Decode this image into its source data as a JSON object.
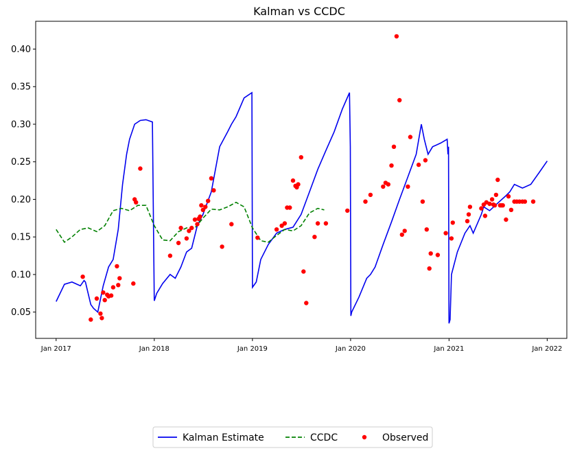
{
  "chart_data": {
    "type": "line",
    "title": "Kalman vs CCDC",
    "xlabel": "",
    "ylabel": "",
    "xlim": [
      "2016-10-17",
      "2022-03-15"
    ],
    "ylim": [
      0.015,
      0.437
    ],
    "x_ticks": [
      "Jan 2017",
      "Jan 2018",
      "Jan 2019",
      "Jan 2020",
      "Jan 2021",
      "Jan 2022"
    ],
    "y_ticks": [
      "0.05",
      "0.10",
      "0.15",
      "0.20",
      "0.25",
      "0.30",
      "0.35",
      "0.40"
    ],
    "legend": {
      "placement": "bottom-center",
      "entries": [
        "Kalman Estimate",
        "CCDC",
        "Observed"
      ]
    },
    "colors": {
      "kalman": "#0000ee",
      "ccdc": "#008000",
      "observed": "#ff0000"
    },
    "series": [
      {
        "name": "Kalman Estimate",
        "style": "solid",
        "x": [
          "2017-01-01",
          "2017-02-01",
          "2017-03-01",
          "2017-04-01",
          "2017-04-15",
          "2017-04-20",
          "2017-05-10",
          "2017-05-20",
          "2017-06-05",
          "2017-06-25",
          "2017-07-15",
          "2017-08-01",
          "2017-08-20",
          "2017-09-05",
          "2017-09-20",
          "2017-10-01",
          "2017-10-20",
          "2017-11-10",
          "2017-12-01",
          "2017-12-25",
          "2018-01-01",
          "2018-01-10",
          "2018-02-01",
          "2018-03-01",
          "2018-03-20",
          "2018-04-10",
          "2018-05-01",
          "2018-05-20",
          "2018-06-10",
          "2018-07-01",
          "2018-08-01",
          "2018-09-01",
          "2018-10-01",
          "2018-10-15",
          "2018-11-01",
          "2018-12-01",
          "2018-12-30",
          "2019-01-01",
          "2019-01-15",
          "2019-02-01",
          "2019-03-01",
          "2019-04-01",
          "2019-05-01",
          "2019-06-01",
          "2019-07-01",
          "2019-08-01",
          "2019-09-01",
          "2019-10-01",
          "2019-11-01",
          "2019-12-01",
          "2019-12-28",
          "2019-12-31",
          "2020-01-02",
          "2020-01-05",
          "2020-02-01",
          "2020-03-01",
          "2020-03-15",
          "2020-04-01",
          "2020-05-01",
          "2020-06-01",
          "2020-07-01",
          "2020-08-01",
          "2020-09-01",
          "2020-09-20",
          "2020-10-01",
          "2020-10-15",
          "2020-11-01",
          "2020-12-01",
          "2020-12-25",
          "2020-12-28",
          "2020-12-30",
          "2021-01-01",
          "2021-01-05",
          "2021-01-10",
          "2021-02-01",
          "2021-03-01",
          "2021-03-20",
          "2021-04-01",
          "2021-05-01",
          "2021-05-10",
          "2021-06-01",
          "2021-07-01",
          "2021-08-01",
          "2021-08-15",
          "2021-09-01",
          "2021-10-01",
          "2021-11-01",
          "2021-12-01",
          "2022-01-01"
        ],
        "y": [
          0.064,
          0.087,
          0.09,
          0.085,
          0.092,
          0.09,
          0.06,
          0.055,
          0.05,
          0.085,
          0.11,
          0.12,
          0.16,
          0.22,
          0.26,
          0.28,
          0.3,
          0.305,
          0.306,
          0.303,
          0.065,
          0.075,
          0.088,
          0.1,
          0.095,
          0.11,
          0.13,
          0.135,
          0.165,
          0.18,
          0.21,
          0.27,
          0.29,
          0.3,
          0.31,
          0.335,
          0.342,
          0.083,
          0.09,
          0.12,
          0.14,
          0.155,
          0.16,
          0.163,
          0.18,
          0.21,
          0.24,
          0.265,
          0.29,
          0.32,
          0.342,
          0.27,
          0.045,
          0.05,
          0.07,
          0.095,
          0.1,
          0.11,
          0.14,
          0.17,
          0.2,
          0.23,
          0.26,
          0.3,
          0.28,
          0.26,
          0.27,
          0.275,
          0.28,
          0.26,
          0.27,
          0.035,
          0.04,
          0.1,
          0.13,
          0.155,
          0.165,
          0.155,
          0.18,
          0.19,
          0.185,
          0.195,
          0.205,
          0.21,
          0.22,
          0.215,
          0.22,
          0.235,
          0.251
        ]
      },
      {
        "name": "CCDC",
        "style": "dashed",
        "x": [
          "2017-01-01",
          "2017-02-01",
          "2017-03-01",
          "2017-04-01",
          "2017-05-01",
          "2017-06-01",
          "2017-07-01",
          "2017-08-01",
          "2017-09-01",
          "2017-10-01",
          "2017-11-01",
          "2017-12-01",
          "2018-01-01",
          "2018-02-01",
          "2018-03-01",
          "2018-04-01",
          "2018-05-01",
          "2018-06-01",
          "2018-07-01",
          "2018-08-01",
          "2018-09-01",
          "2018-10-01",
          "2018-11-01",
          "2018-12-01",
          "2019-01-01",
          "2019-02-01",
          "2019-03-01",
          "2019-04-01",
          "2019-05-01",
          "2019-06-01",
          "2019-07-01",
          "2019-08-01",
          "2019-09-01",
          "2019-09-25"
        ],
        "y": [
          0.16,
          0.143,
          0.15,
          0.16,
          0.162,
          0.157,
          0.165,
          0.185,
          0.188,
          0.185,
          0.192,
          0.192,
          0.165,
          0.146,
          0.145,
          0.157,
          0.162,
          0.162,
          0.175,
          0.187,
          0.186,
          0.19,
          0.196,
          0.19,
          0.162,
          0.145,
          0.143,
          0.152,
          0.16,
          0.158,
          0.165,
          0.182,
          0.188,
          0.186
        ]
      },
      {
        "name": "Observed",
        "style": "points",
        "x": [
          "2017-04-10",
          "2017-05-10",
          "2017-06-01",
          "2017-06-15",
          "2017-06-20",
          "2017-06-25",
          "2017-07-01",
          "2017-07-10",
          "2017-07-15",
          "2017-07-25",
          "2017-08-01",
          "2017-08-15",
          "2017-08-20",
          "2017-08-25",
          "2017-10-15",
          "2017-10-20",
          "2017-10-25",
          "2017-11-10",
          "2018-03-01",
          "2018-04-01",
          "2018-04-10",
          "2018-05-01",
          "2018-05-10",
          "2018-05-20",
          "2018-06-01",
          "2018-06-10",
          "2018-06-15",
          "2018-06-20",
          "2018-06-25",
          "2018-07-01",
          "2018-07-10",
          "2018-07-20",
          "2018-08-01",
          "2018-08-10",
          "2018-09-10",
          "2018-10-15",
          "2019-01-20",
          "2019-04-01",
          "2019-04-20",
          "2019-05-01",
          "2019-05-10",
          "2019-05-20",
          "2019-06-01",
          "2019-06-10",
          "2019-06-15",
          "2019-06-20",
          "2019-07-01",
          "2019-07-10",
          "2019-07-20",
          "2019-08-20",
          "2019-09-01",
          "2019-10-01",
          "2019-12-20",
          "2020-02-25",
          "2020-03-15",
          "2020-05-01",
          "2020-05-10",
          "2020-05-20",
          "2020-06-01",
          "2020-06-10",
          "2020-06-20",
          "2020-07-01",
          "2020-07-10",
          "2020-07-20",
          "2020-08-01",
          "2020-08-10",
          "2020-09-10",
          "2020-09-25",
          "2020-10-05",
          "2020-10-10",
          "2020-10-20",
          "2020-10-25",
          "2020-11-20",
          "2020-12-20",
          "2021-01-10",
          "2021-01-15",
          "2021-03-10",
          "2021-03-15",
          "2021-03-20",
          "2021-05-01",
          "2021-05-10",
          "2021-05-15",
          "2021-05-20",
          "2021-06-01",
          "2021-06-10",
          "2021-06-15",
          "2021-06-20",
          "2021-06-25",
          "2021-07-01",
          "2021-07-10",
          "2021-07-15",
          "2021-07-20",
          "2021-08-01",
          "2021-08-10",
          "2021-08-20",
          "2021-09-01",
          "2021-09-10",
          "2021-09-20",
          "2021-10-01",
          "2021-10-10",
          "2021-11-10"
        ],
        "y": [
          0.097,
          0.04,
          0.068,
          0.048,
          0.042,
          0.076,
          0.066,
          0.073,
          0.071,
          0.072,
          0.083,
          0.111,
          0.086,
          0.095,
          0.088,
          0.2,
          0.196,
          0.241,
          0.125,
          0.142,
          0.162,
          0.148,
          0.158,
          0.162,
          0.173,
          0.167,
          0.174,
          0.177,
          0.192,
          0.186,
          0.19,
          0.198,
          0.228,
          0.212,
          0.137,
          0.167,
          0.149,
          0.16,
          0.165,
          0.168,
          0.189,
          0.189,
          0.225,
          0.218,
          0.216,
          0.22,
          0.256,
          0.104,
          0.062,
          0.15,
          0.168,
          0.168,
          0.185,
          0.197,
          0.206,
          0.217,
          0.222,
          0.22,
          0.245,
          0.27,
          0.417,
          0.332,
          0.153,
          0.158,
          0.217,
          0.283,
          0.246,
          0.197,
          0.252,
          0.16,
          0.108,
          0.128,
          0.126,
          0.155,
          0.148,
          0.169,
          0.171,
          0.18,
          0.19,
          0.188,
          0.193,
          0.178,
          0.196,
          0.194,
          0.2,
          0.193,
          0.192,
          0.206,
          0.226,
          0.192,
          0.192,
          0.192,
          0.173,
          0.204,
          0.186,
          0.197,
          0.197,
          0.197,
          0.197,
          0.197,
          0.197
        ],
        "_note_ignore": ""
      }
    ]
  }
}
